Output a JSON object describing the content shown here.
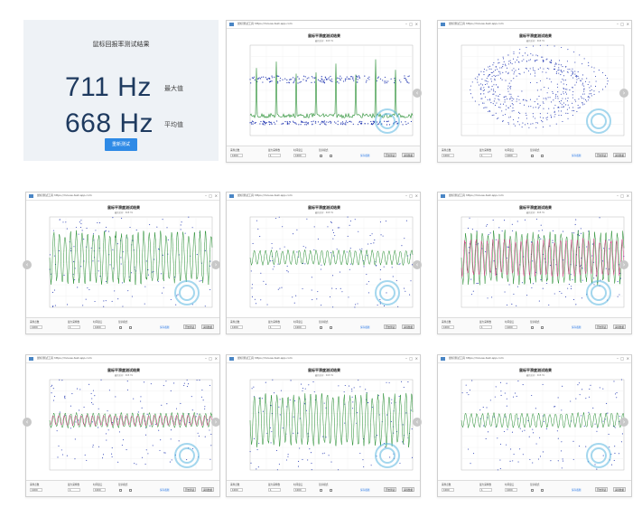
{
  "result": {
    "title": "鼠标回报率测试结果",
    "max_value": "711 Hz",
    "max_label": "最大值",
    "avg_value": "668 Hz",
    "avg_label": "平均值",
    "start_button": "重新测试"
  },
  "window": {
    "chart_title": "鼠标平滑度测试结果",
    "panel": {
      "label1": "采样点数",
      "label2": "最大采样数",
      "label3": "时间窗口",
      "label4": "显示模式",
      "link": "保存截图",
      "btn1": "开始测试",
      "btn2": "清除数据"
    }
  },
  "windows": [
    {
      "type": "interval",
      "app": "鼠标测试工具 https://mouse-test-app.com",
      "subtitle": "最新采样 · 668 Hz"
    },
    {
      "type": "ellipse",
      "app": "鼠标测试工具 https://mouse-test-app.com",
      "subtitle": "最新采样 · 668 Hz"
    },
    {
      "type": "waveBig",
      "app": "鼠标测试工具 https://mouse-test-app.com",
      "subtitle": "最新采样 · 668 Hz"
    },
    {
      "type": "waveSmall",
      "app": "鼠标测试工具 https://mouse-test-app.com",
      "subtitle": "最新采样 · 668 Hz"
    },
    {
      "type": "waveRed",
      "app": "鼠标测试工具 https://mouse-test-app.com",
      "subtitle": "最新采样 · 668 Hz"
    },
    {
      "type": "waveRedSmall",
      "app": "鼠标测试工具 https://mouse-test-app.com",
      "subtitle": "最新采样 · 668 Hz"
    },
    {
      "type": "waveBig",
      "app": "鼠标测试工具 https://mouse-test-app.com",
      "subtitle": "最新采样 · 668 Hz"
    },
    {
      "type": "waveSmall",
      "app": "鼠标测试工具 https://mouse-test-app.com",
      "subtitle": "最新采样 · 668 Hz"
    }
  ],
  "arrow_left": "‹",
  "arrow_right": "›",
  "colors": {
    "accent": "#2e8ae6",
    "signal": "#1f8a2a",
    "points": "#2b3fb5",
    "overlay": "#d9207a"
  }
}
